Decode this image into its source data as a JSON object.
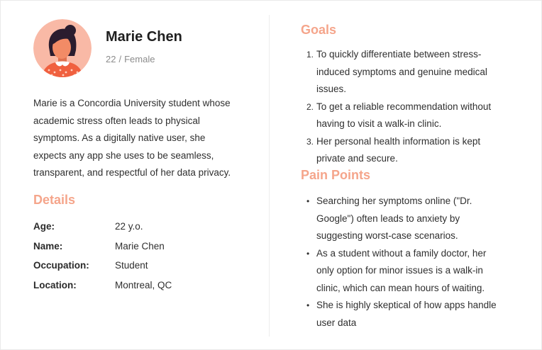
{
  "persona": {
    "name": "Marie Chen",
    "age": "22",
    "separator": "/",
    "gender": "Female",
    "avatar_icon": "woman-avatar-icon",
    "bio_lines": [
      "Marie is a Concordia University student whose",
      "academic stress often leads to physical",
      "symptoms. As a digitally native user, she",
      "expects any app she uses to be seamless,",
      "transparent, and respectful of her data privacy."
    ]
  },
  "details": {
    "title": "Details",
    "rows": [
      {
        "key": "Age:",
        "value": "22 y.o."
      },
      {
        "key": "Name:",
        "value": "Marie Chen"
      },
      {
        "key": "Occupation:",
        "value": "Student"
      },
      {
        "key": "Location:",
        "value": "Montreal, QC"
      }
    ]
  },
  "goals": {
    "title": "Goals",
    "items": [
      {
        "num": "1.",
        "lines": [
          "To quickly differentiate between stress-",
          "induced symptoms and genuine medical",
          "issues."
        ]
      },
      {
        "num": "2.",
        "lines": [
          "To get a reliable recommendation without",
          "having to visit a walk-in clinic."
        ]
      },
      {
        "num": "3.",
        "lines": [
          "Her personal health information is kept",
          "private and secure."
        ]
      }
    ]
  },
  "pain_points": {
    "title": "Pain Points",
    "bullet": "•",
    "items": [
      {
        "lines": [
          "Searching her symptoms online (\"Dr.",
          "Google\") often leads to anxiety by",
          "suggesting worst-case scenarios."
        ]
      },
      {
        "lines": [
          "As a student without a family doctor, her",
          "only option for minor issues is a walk-in",
          "clinic, which can mean hours of waiting."
        ]
      },
      {
        "lines": [
          "She is highly skeptical of how apps handle",
          "user data"
        ]
      }
    ]
  },
  "colors": {
    "accent": "#f5a58b",
    "avatar_bg": "#f9b9a6",
    "hair": "#2b1c2e",
    "skin": "#f28b66",
    "shirt": "#f0603f",
    "collar": "#ffffff"
  }
}
